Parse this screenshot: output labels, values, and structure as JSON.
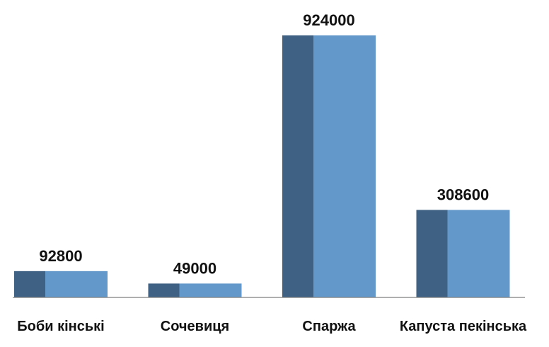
{
  "chart_data": {
    "type": "bar",
    "categories": [
      "Боби кінські",
      "Сочевиця",
      "Спаржа",
      "Капуста пекінська"
    ],
    "values": [
      92800,
      49000,
      924000,
      308600
    ],
    "data_labels": [
      "92800",
      "49000",
      "924000",
      "308600"
    ],
    "title": "",
    "xlabel": "",
    "ylabel": "",
    "ylim": [
      0,
      924000
    ],
    "grid": false,
    "legend": "none",
    "style": "3d-bar",
    "colors": {
      "bar_front": "#6399ca",
      "bar_side": "#3f6183",
      "axis": "#7f7f7f",
      "text": "#111111"
    }
  }
}
